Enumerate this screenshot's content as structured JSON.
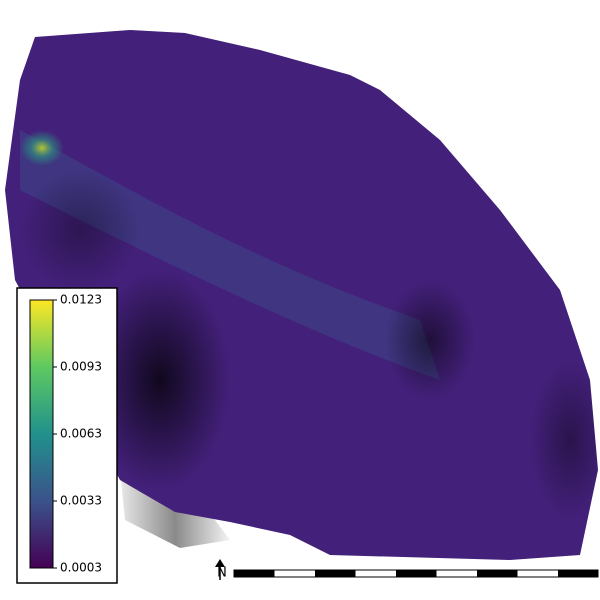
{
  "colorbar": {
    "clim": [
      0.0003,
      0.0123
    ],
    "ticks": [
      0.0003,
      0.0033,
      0.0063,
      0.0093,
      0.0123
    ]
  },
  "north_label": "N"
}
